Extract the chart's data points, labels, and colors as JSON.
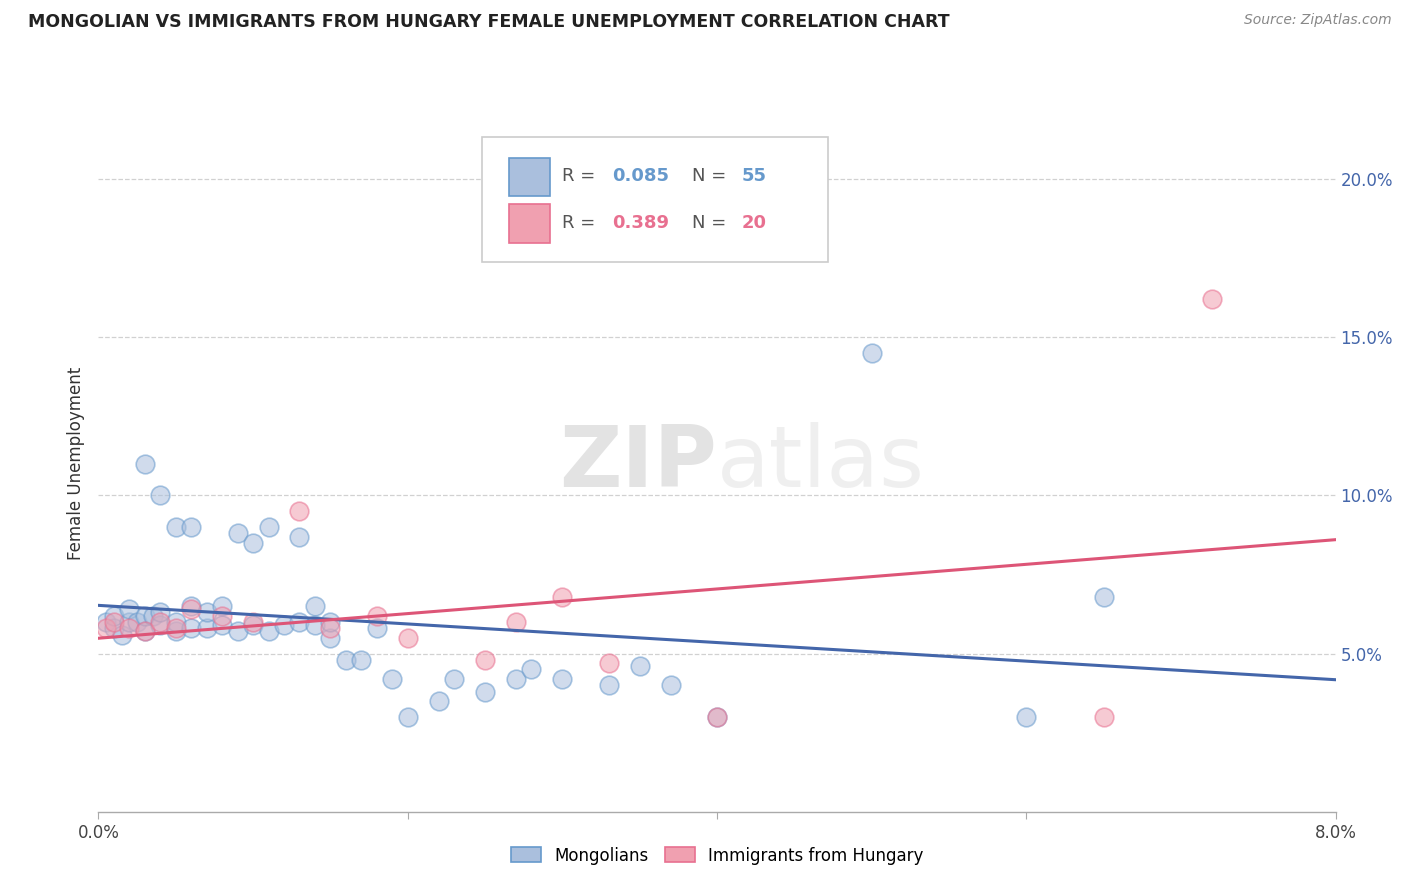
{
  "title": "MONGOLIAN VS IMMIGRANTS FROM HUNGARY FEMALE UNEMPLOYMENT CORRELATION CHART",
  "source": "Source: ZipAtlas.com",
  "ylabel": "Female Unemployment",
  "xlim": [
    0.0,
    0.08
  ],
  "ylim": [
    0.0,
    0.22
  ],
  "xticks": [
    0.0,
    0.02,
    0.04,
    0.06,
    0.08
  ],
  "xtick_labels": [
    "0.0%",
    "",
    "",
    "",
    "8.0%"
  ],
  "yticks": [
    0.05,
    0.1,
    0.15,
    0.2
  ],
  "ytick_labels": [
    "5.0%",
    "10.0%",
    "15.0%",
    "20.0%"
  ],
  "watermark": "ZIPatlas",
  "blue_color": "#6699cc",
  "pink_color": "#e87090",
  "blue_fill": "#aabfdd",
  "pink_fill": "#f0a0b0",
  "blue_line_color": "#4466aa",
  "pink_line_color": "#dd5577",
  "marker_size": 180,
  "blue_R": "0.085",
  "blue_N": "55",
  "pink_R": "0.389",
  "pink_N": "20",
  "mongolian_x": [
    0.0005,
    0.001,
    0.001,
    0.0015,
    0.002,
    0.002,
    0.0025,
    0.003,
    0.003,
    0.003,
    0.0035,
    0.004,
    0.004,
    0.004,
    0.005,
    0.005,
    0.005,
    0.006,
    0.006,
    0.006,
    0.007,
    0.007,
    0.008,
    0.008,
    0.009,
    0.009,
    0.01,
    0.01,
    0.011,
    0.011,
    0.012,
    0.013,
    0.013,
    0.014,
    0.014,
    0.015,
    0.015,
    0.016,
    0.017,
    0.018,
    0.019,
    0.02,
    0.022,
    0.023,
    0.025,
    0.027,
    0.028,
    0.03,
    0.033,
    0.035,
    0.037,
    0.04,
    0.05,
    0.06,
    0.065
  ],
  "mongolian_y": [
    0.06,
    0.058,
    0.062,
    0.056,
    0.06,
    0.064,
    0.06,
    0.057,
    0.062,
    0.11,
    0.062,
    0.059,
    0.063,
    0.1,
    0.057,
    0.06,
    0.09,
    0.058,
    0.065,
    0.09,
    0.058,
    0.063,
    0.059,
    0.065,
    0.057,
    0.088,
    0.059,
    0.085,
    0.057,
    0.09,
    0.059,
    0.06,
    0.087,
    0.059,
    0.065,
    0.055,
    0.06,
    0.048,
    0.048,
    0.058,
    0.042,
    0.03,
    0.035,
    0.042,
    0.038,
    0.042,
    0.045,
    0.042,
    0.04,
    0.046,
    0.04,
    0.03,
    0.145,
    0.03,
    0.068
  ],
  "hungary_x": [
    0.0005,
    0.001,
    0.002,
    0.003,
    0.004,
    0.005,
    0.006,
    0.008,
    0.01,
    0.013,
    0.015,
    0.018,
    0.02,
    0.025,
    0.027,
    0.03,
    0.033,
    0.04,
    0.065,
    0.072
  ],
  "hungary_y": [
    0.058,
    0.06,
    0.058,
    0.057,
    0.06,
    0.058,
    0.064,
    0.062,
    0.06,
    0.095,
    0.058,
    0.062,
    0.055,
    0.048,
    0.06,
    0.068,
    0.047,
    0.03,
    0.03,
    0.162
  ]
}
